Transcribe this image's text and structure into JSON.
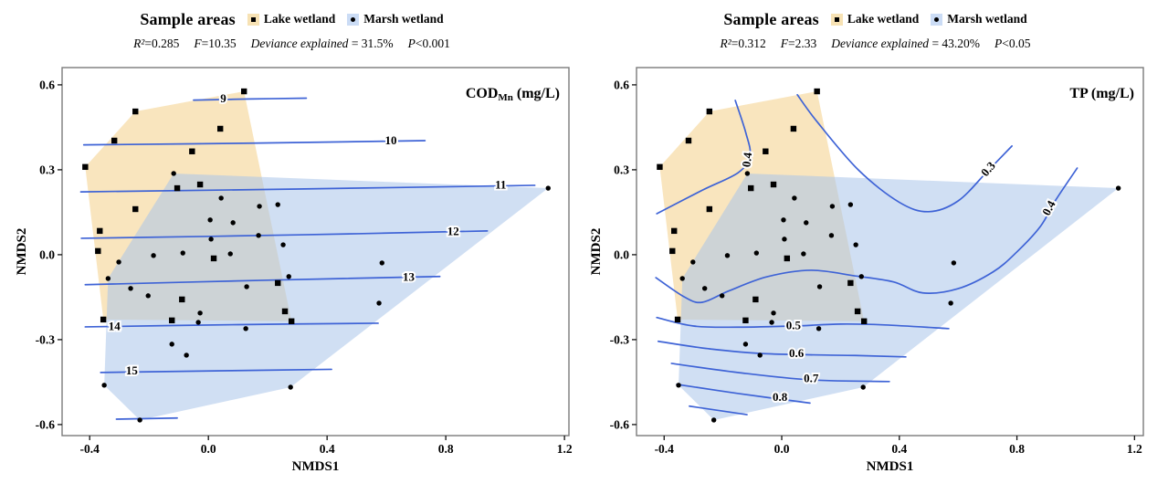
{
  "chart_data": {
    "type": "scatter",
    "subtype": "nmds-ordination-with-contours",
    "axes": {
      "x": {
        "label": "NMDS1",
        "ticks": [
          [
            -0.4,
            "-0.4"
          ],
          [
            0.0,
            "0.0"
          ],
          [
            0.4,
            "0.4"
          ],
          [
            0.8,
            "0.8"
          ],
          [
            1.2,
            "1.2"
          ]
        ],
        "range": [
          -0.49,
          1.22
        ]
      },
      "y": {
        "label": "NMDS2",
        "ticks": [
          [
            0.6,
            "0.6"
          ],
          [
            0.3,
            "0.3"
          ],
          [
            0.0,
            "0.0"
          ],
          [
            -0.3,
            "-0.3"
          ],
          [
            -0.6,
            "-0.6"
          ]
        ],
        "range": [
          -0.64,
          0.66
        ]
      }
    },
    "style": {
      "contour_color": "#3E63D6",
      "lake_fill": "#F9E5BE",
      "marsh_fill": "#A9C4EA",
      "marsh_opacity": 0.55,
      "point_color": "#000000",
      "border_color": "#7a7a7a",
      "tick_color": "#111111"
    },
    "groups": [
      {
        "name": "Lake wetland",
        "marker": "square",
        "swatch": "#F7E2B4",
        "points": [
          [
            0.12,
            0.577
          ],
          [
            -0.246,
            0.506
          ],
          [
            0.04,
            0.445
          ],
          [
            -0.317,
            0.403
          ],
          [
            -0.055,
            0.365
          ],
          [
            -0.415,
            0.31
          ],
          [
            -0.028,
            0.248
          ],
          [
            -0.105,
            0.235
          ],
          [
            -0.246,
            0.161
          ],
          [
            -0.366,
            0.084
          ],
          [
            -0.372,
            0.013
          ],
          [
            0.018,
            -0.013
          ],
          [
            -0.089,
            -0.158
          ],
          [
            -0.123,
            -0.232
          ],
          [
            -0.354,
            -0.229
          ],
          [
            0.234,
            -0.1
          ],
          [
            0.258,
            -0.2
          ],
          [
            0.28,
            -0.235
          ]
        ],
        "hull": [
          [
            0.12,
            0.577
          ],
          [
            0.28,
            -0.235
          ],
          [
            -0.354,
            -0.229
          ],
          [
            -0.415,
            0.31
          ],
          [
            -0.246,
            0.506
          ]
        ]
      },
      {
        "name": "Marsh wetland",
        "marker": "circle",
        "swatch": "#CBDCF5",
        "points": [
          [
            -0.117,
            0.287
          ],
          [
            0.043,
            0.2
          ],
          [
            0.172,
            0.171
          ],
          [
            0.234,
            0.177
          ],
          [
            0.006,
            0.123
          ],
          [
            0.083,
            0.113
          ],
          [
            0.009,
            0.055
          ],
          [
            0.169,
            0.068
          ],
          [
            0.252,
            0.035
          ],
          [
            -0.185,
            -0.003
          ],
          [
            -0.086,
            0.006
          ],
          [
            0.074,
            0.003
          ],
          [
            -0.302,
            -0.026
          ],
          [
            -0.338,
            -0.084
          ],
          [
            -0.262,
            -0.119
          ],
          [
            -0.203,
            -0.145
          ],
          [
            -0.028,
            -0.206
          ],
          [
            -0.034,
            -0.239
          ],
          [
            0.129,
            -0.113
          ],
          [
            0.271,
            -0.077
          ],
          [
            0.126,
            -0.261
          ],
          [
            -0.123,
            -0.316
          ],
          [
            -0.074,
            -0.355
          ],
          [
            -0.351,
            -0.461
          ],
          [
            0.277,
            -0.468
          ],
          [
            -0.231,
            -0.584
          ],
          [
            0.585,
            -0.029
          ],
          [
            0.575,
            -0.171
          ],
          [
            1.145,
            0.235
          ]
        ],
        "hull": [
          [
            -0.117,
            0.287
          ],
          [
            1.145,
            0.235
          ],
          [
            0.277,
            -0.468
          ],
          [
            -0.231,
            -0.584
          ],
          [
            -0.351,
            -0.461
          ],
          [
            -0.338,
            -0.084
          ]
        ]
      }
    ],
    "panels": [
      {
        "legend_title": "Sample areas",
        "legend": [
          {
            "label": "Lake wetland"
          },
          {
            "label": "Marsh wetland"
          }
        ],
        "stats": [
          {
            "var": "R²",
            "val": "=0.285"
          },
          {
            "var": "F",
            "val": "=10.35"
          },
          {
            "var": "Deviance explained",
            "val": " = 31.5%"
          },
          {
            "var": "P",
            "val": "<0.001"
          }
        ],
        "surface_label": {
          "main": "COD",
          "sub": "Mn",
          "suffix": " (mg/L)"
        },
        "contours": [
          {
            "label": "9",
            "label_at": [
              0.05,
              0.548
            ],
            "rot": 0,
            "pts": [
              [
                -0.05,
                0.546
              ],
              [
                0.14,
                0.55
              ],
              [
                0.33,
                0.553
              ]
            ]
          },
          {
            "label": "10",
            "label_at": [
              0.615,
              0.4
            ],
            "rot": 0,
            "pts": [
              [
                -0.42,
                0.388
              ],
              [
                0.15,
                0.394
              ],
              [
                0.73,
                0.403
              ]
            ]
          },
          {
            "label": "11",
            "label_at": [
              0.985,
              0.243
            ],
            "rot": 0,
            "pts": [
              [
                -0.43,
                0.222
              ],
              [
                0.3,
                0.232
              ],
              [
                1.1,
                0.245
              ]
            ]
          },
          {
            "label": "12",
            "label_at": [
              0.825,
              0.079
            ],
            "rot": 0,
            "pts": [
              [
                -0.428,
                0.058
              ],
              [
                0.3,
                0.07
              ],
              [
                0.94,
                0.084
              ]
            ]
          },
          {
            "label": "13",
            "label_at": [
              0.675,
              -0.083
            ],
            "rot": 0,
            "pts": [
              [
                -0.415,
                -0.106
              ],
              [
                0.2,
                -0.09
              ],
              [
                0.78,
                -0.077
              ]
            ]
          },
          {
            "label": "14",
            "label_at": [
              -0.317,
              -0.256
            ],
            "rot": 0,
            "pts": [
              [
                -0.415,
                -0.255
              ],
              [
                0.1,
                -0.247
              ],
              [
                0.572,
                -0.242
              ]
            ]
          },
          {
            "label": "15",
            "label_at": [
              -0.258,
              -0.414
            ],
            "rot": 0,
            "pts": [
              [
                -0.363,
                -0.416
              ],
              [
                0.05,
                -0.41
              ],
              [
                0.415,
                -0.405
              ]
            ]
          },
          {
            "label": "",
            "label_at": null,
            "rot": 0,
            "pts": [
              [
                -0.31,
                -0.581
              ],
              [
                -0.105,
                -0.577
              ]
            ]
          }
        ]
      },
      {
        "legend_title": "Sample areas",
        "legend": [
          {
            "label": "Lake wetland"
          },
          {
            "label": "Marsh wetland"
          }
        ],
        "stats": [
          {
            "var": "R²",
            "val": "=0.312"
          },
          {
            "var": "F",
            "val": "=2.33"
          },
          {
            "var": "Deviance explained",
            "val": " = 43.20%"
          },
          {
            "var": "P",
            "val": "<0.05"
          }
        ],
        "surface_label": {
          "main": "TP",
          "sub": "",
          "suffix": " (mg/L)"
        },
        "contours": [
          {
            "label": "0.4",
            "label_at": [
              -0.114,
              0.335
            ],
            "rot": -83,
            "pts": [
              [
                -0.158,
                0.545
              ],
              [
                -0.122,
                0.43
              ],
              [
                -0.108,
                0.35
              ],
              [
                -0.148,
                0.29
              ],
              [
                -0.27,
                0.228
              ],
              [
                -0.425,
                0.145
              ]
            ]
          },
          {
            "label": "0.3",
            "label_at": [
              0.705,
              0.3
            ],
            "rot": -50,
            "pts": [
              [
                0.053,
                0.565
              ],
              [
                0.12,
                0.47
              ],
              [
                0.26,
                0.3
              ],
              [
                0.4,
                0.185
              ],
              [
                0.5,
                0.152
              ],
              [
                0.6,
                0.19
              ],
              [
                0.7,
                0.295
              ],
              [
                0.783,
                0.384
              ]
            ]
          },
          {
            "label": "0.4",
            "label_at": [
              0.912,
              0.163
            ],
            "rot": -62,
            "pts": [
              [
                -0.428,
                -0.081
              ],
              [
                -0.33,
                -0.15
              ],
              [
                -0.27,
                -0.168
              ],
              [
                -0.18,
                -0.128
              ],
              [
                -0.05,
                -0.078
              ],
              [
                0.1,
                -0.055
              ],
              [
                0.25,
                -0.075
              ],
              [
                0.38,
                -0.096
              ],
              [
                0.48,
                -0.135
              ],
              [
                0.6,
                -0.12
              ],
              [
                0.72,
                -0.06
              ],
              [
                0.8,
                0.01
              ],
              [
                0.88,
                0.1
              ],
              [
                0.93,
                0.19
              ],
              [
                1.005,
                0.306
              ]
            ]
          },
          {
            "label": "0.5",
            "label_at": [
              0.04,
              -0.253
            ],
            "rot": 0,
            "pts": [
              [
                -0.425,
                -0.222
              ],
              [
                -0.3,
                -0.252
              ],
              [
                -0.15,
                -0.256
              ],
              [
                0.04,
                -0.252
              ],
              [
                0.2,
                -0.245
              ],
              [
                0.35,
                -0.248
              ],
              [
                0.568,
                -0.261
              ]
            ]
          },
          {
            "label": "0.6",
            "label_at": [
              0.05,
              -0.352
            ],
            "rot": 0,
            "pts": [
              [
                -0.42,
                -0.306
              ],
              [
                -0.25,
                -0.332
              ],
              [
                -0.05,
                -0.35
              ],
              [
                0.25,
                -0.356
              ],
              [
                0.422,
                -0.361
              ]
            ]
          },
          {
            "label": "0.7",
            "label_at": [
              0.1,
              -0.44
            ],
            "rot": 0,
            "pts": [
              [
                -0.375,
                -0.384
              ],
              [
                -0.15,
                -0.416
              ],
              [
                0.096,
                -0.442
              ],
              [
                0.366,
                -0.448
              ]
            ]
          },
          {
            "label": "0.8",
            "label_at": [
              -0.006,
              -0.507
            ],
            "rot": 0,
            "pts": [
              [
                -0.357,
                -0.458
              ],
              [
                -0.15,
                -0.49
              ],
              [
                0.096,
                -0.524
              ]
            ]
          },
          {
            "label": "",
            "label_at": null,
            "rot": 0,
            "pts": [
              [
                -0.314,
                -0.535
              ],
              [
                -0.118,
                -0.565
              ]
            ]
          }
        ]
      }
    ]
  }
}
